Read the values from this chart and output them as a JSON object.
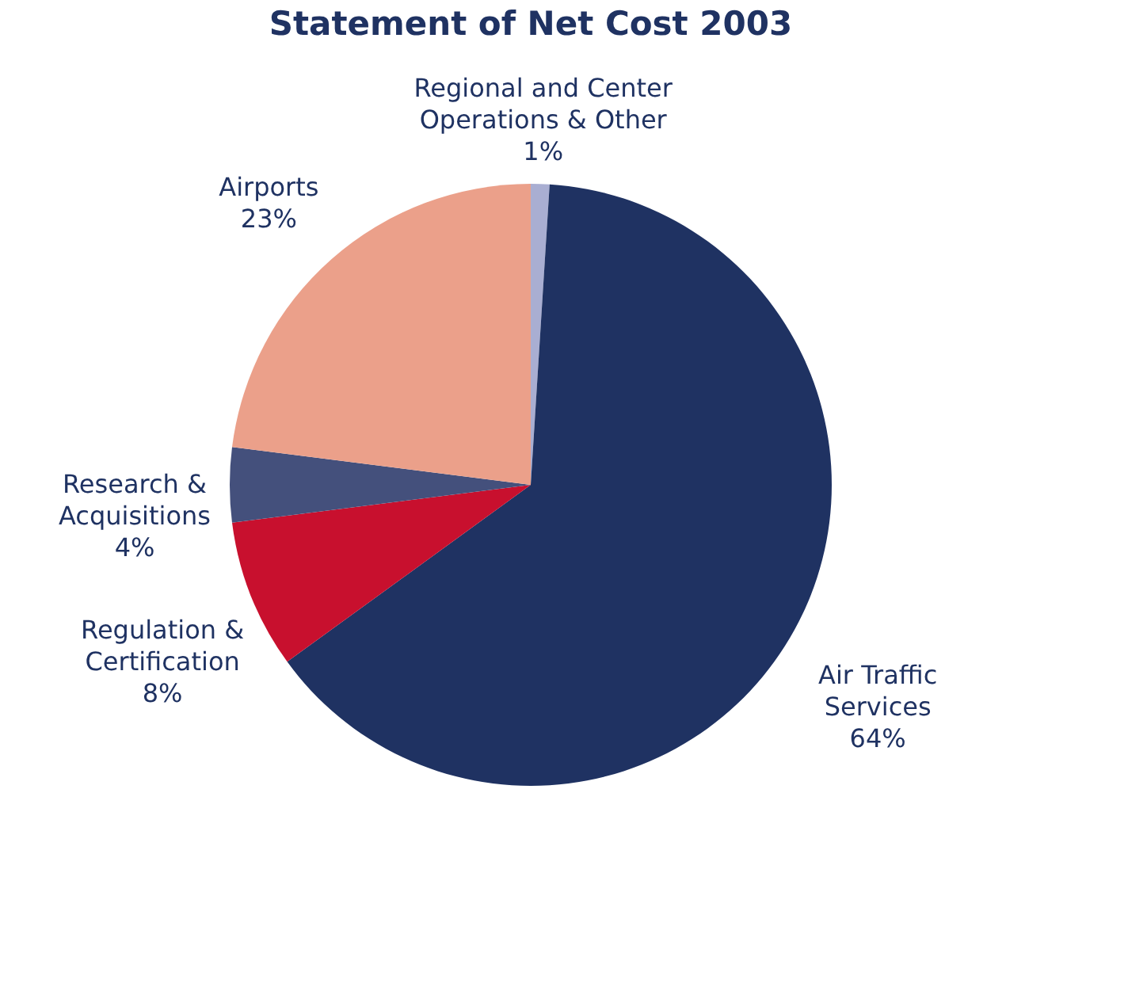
{
  "chart_data": {
    "type": "pie",
    "title": "Statement of Net Cost 2003",
    "categories": [
      "Regional and Center Operations & Other",
      "Air Traffic Services",
      "Regulation & Certification",
      "Research & Acquisitions",
      "Airports"
    ],
    "values": [
      1,
      64,
      8,
      4,
      23
    ],
    "value_labels": [
      "1%",
      "64%",
      "8%",
      "4%",
      "23%"
    ],
    "colors": [
      "#a9aed2",
      "#1f3262",
      "#c8102e",
      "#44507c",
      "#eba08a"
    ],
    "legend": false
  }
}
